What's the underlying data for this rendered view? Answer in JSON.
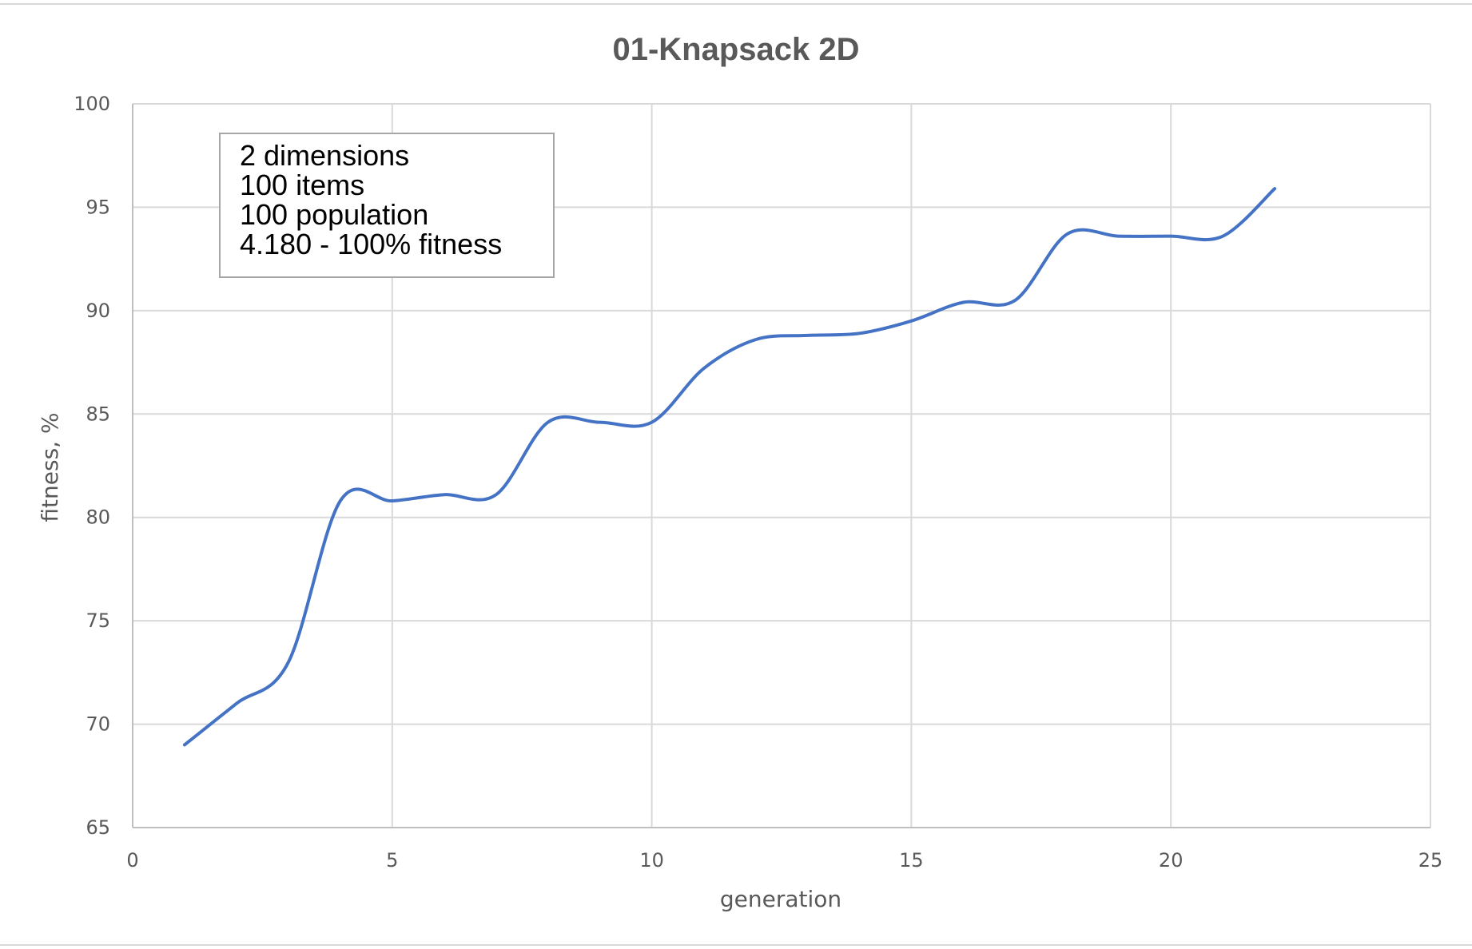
{
  "chart_data": {
    "type": "line",
    "title": "01-Knapsack 2D",
    "xlabel": "generation",
    "ylabel": "fitness, %",
    "xlim": [
      0,
      25
    ],
    "ylim": [
      65,
      100
    ],
    "x_ticks": [
      "0",
      "5",
      "10",
      "15",
      "20",
      "25"
    ],
    "y_ticks": [
      "65",
      "70",
      "75",
      "80",
      "85",
      "90",
      "95",
      "100"
    ],
    "grid": true,
    "legend": "none",
    "smooth": true,
    "annotation": [
      "2 dimensions",
      "100 items",
      "100 population",
      "4.180 - 100% fitness"
    ],
    "series": [
      {
        "color": "#4472c4",
        "x": [
          1,
          2,
          3,
          4,
          5,
          6,
          7,
          8,
          9,
          10,
          11,
          12,
          13,
          14,
          15,
          16,
          17,
          18,
          19,
          20,
          21,
          22
        ],
        "y": [
          69.0,
          71.0,
          73.0,
          80.8,
          80.8,
          81.1,
          81.1,
          84.6,
          84.6,
          84.6,
          87.2,
          88.6,
          88.8,
          88.9,
          89.5,
          90.4,
          90.5,
          93.7,
          93.6,
          93.6,
          93.6,
          95.9
        ]
      }
    ]
  }
}
